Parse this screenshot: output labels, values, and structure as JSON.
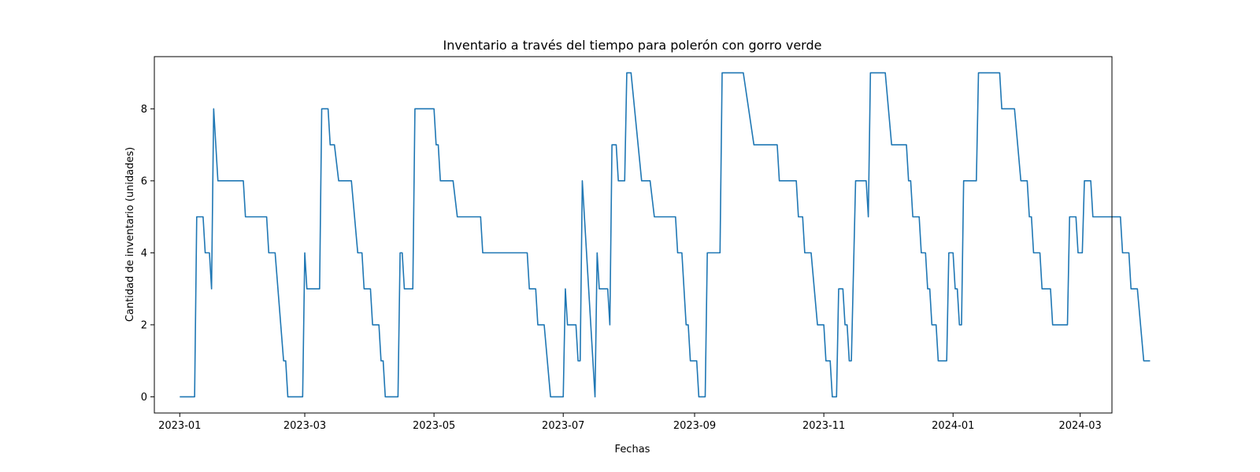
{
  "chart_data": {
    "type": "line",
    "title": "Inventario a través del tiempo para polerón con gorro verde",
    "xlabel": "Fechas",
    "ylabel": "Cantidad de inventario (unidades)",
    "xlim": [
      "2022-12-20",
      "2024-03-16"
    ],
    "ylim": [
      -0.45,
      9.45
    ],
    "grid": false,
    "x_ticks": [
      {
        "date": "2023-01-01",
        "label": "2023-01"
      },
      {
        "date": "2023-03-01",
        "label": "2023-03"
      },
      {
        "date": "2023-05-01",
        "label": "2023-05"
      },
      {
        "date": "2023-07-01",
        "label": "2023-07"
      },
      {
        "date": "2023-09-01",
        "label": "2023-09"
      },
      {
        "date": "2023-11-01",
        "label": "2023-11"
      },
      {
        "date": "2024-01-01",
        "label": "2024-01"
      },
      {
        "date": "2024-03-01",
        "label": "2024-03"
      }
    ],
    "y_ticks": [
      0,
      2,
      4,
      6,
      8
    ],
    "series": [
      {
        "color": "#1f77b4",
        "points": [
          [
            "2023-01-01",
            0
          ],
          [
            "2023-01-08",
            0
          ],
          [
            "2023-01-09",
            5
          ],
          [
            "2023-01-12",
            5
          ],
          [
            "2023-01-13",
            4
          ],
          [
            "2023-01-15",
            4
          ],
          [
            "2023-01-16",
            3
          ],
          [
            "2023-01-17",
            8
          ],
          [
            "2023-01-19",
            6
          ],
          [
            "2023-01-31",
            6
          ],
          [
            "2023-02-01",
            5
          ],
          [
            "2023-02-11",
            5
          ],
          [
            "2023-02-12",
            4
          ],
          [
            "2023-02-15",
            4
          ],
          [
            "2023-02-19",
            1
          ],
          [
            "2023-02-20",
            1
          ],
          [
            "2023-02-21",
            0
          ],
          [
            "2023-02-28",
            0
          ],
          [
            "2023-03-01",
            4
          ],
          [
            "2023-03-02",
            3
          ],
          [
            "2023-03-08",
            3
          ],
          [
            "2023-03-09",
            8
          ],
          [
            "2023-03-12",
            8
          ],
          [
            "2023-03-13",
            7
          ],
          [
            "2023-03-15",
            7
          ],
          [
            "2023-03-17",
            6
          ],
          [
            "2023-03-23",
            6
          ],
          [
            "2023-03-26",
            4
          ],
          [
            "2023-03-28",
            4
          ],
          [
            "2023-03-29",
            3
          ],
          [
            "2023-04-01",
            3
          ],
          [
            "2023-04-02",
            2
          ],
          [
            "2023-04-05",
            2
          ],
          [
            "2023-04-06",
            1
          ],
          [
            "2023-04-07",
            1
          ],
          [
            "2023-04-08",
            0
          ],
          [
            "2023-04-14",
            0
          ],
          [
            "2023-04-15",
            4
          ],
          [
            "2023-04-16",
            4
          ],
          [
            "2023-04-17",
            3
          ],
          [
            "2023-04-21",
            3
          ],
          [
            "2023-04-22",
            8
          ],
          [
            "2023-05-01",
            8
          ],
          [
            "2023-05-02",
            7
          ],
          [
            "2023-05-03",
            7
          ],
          [
            "2023-05-04",
            6
          ],
          [
            "2023-05-10",
            6
          ],
          [
            "2023-05-12",
            5
          ],
          [
            "2023-05-23",
            5
          ],
          [
            "2023-05-24",
            4
          ],
          [
            "2023-06-14",
            4
          ],
          [
            "2023-06-15",
            3
          ],
          [
            "2023-06-18",
            3
          ],
          [
            "2023-06-19",
            2
          ],
          [
            "2023-06-22",
            2
          ],
          [
            "2023-06-25",
            0
          ],
          [
            "2023-07-01",
            0
          ],
          [
            "2023-07-02",
            3
          ],
          [
            "2023-07-03",
            2
          ],
          [
            "2023-07-07",
            2
          ],
          [
            "2023-07-08",
            1
          ],
          [
            "2023-07-09",
            1
          ],
          [
            "2023-07-10",
            6
          ],
          [
            "2023-07-16",
            0
          ],
          [
            "2023-07-17",
            4
          ],
          [
            "2023-07-18",
            3
          ],
          [
            "2023-07-22",
            3
          ],
          [
            "2023-07-23",
            2
          ],
          [
            "2023-07-24",
            7
          ],
          [
            "2023-07-26",
            7
          ],
          [
            "2023-07-27",
            6
          ],
          [
            "2023-07-30",
            6
          ],
          [
            "2023-07-31",
            9
          ],
          [
            "2023-08-02",
            9
          ],
          [
            "2023-08-07",
            6
          ],
          [
            "2023-08-11",
            6
          ],
          [
            "2023-08-13",
            5
          ],
          [
            "2023-08-23",
            5
          ],
          [
            "2023-08-24",
            4
          ],
          [
            "2023-08-26",
            4
          ],
          [
            "2023-08-28",
            2
          ],
          [
            "2023-08-29",
            2
          ],
          [
            "2023-08-30",
            1
          ],
          [
            "2023-09-02",
            1
          ],
          [
            "2023-09-03",
            0
          ],
          [
            "2023-09-06",
            0
          ],
          [
            "2023-09-07",
            4
          ],
          [
            "2023-09-13",
            4
          ],
          [
            "2023-09-14",
            9
          ],
          [
            "2023-09-24",
            9
          ],
          [
            "2023-09-29",
            7
          ],
          [
            "2023-10-10",
            7
          ],
          [
            "2023-10-11",
            6
          ],
          [
            "2023-10-19",
            6
          ],
          [
            "2023-10-20",
            5
          ],
          [
            "2023-10-22",
            5
          ],
          [
            "2023-10-23",
            4
          ],
          [
            "2023-10-26",
            4
          ],
          [
            "2023-10-29",
            2
          ],
          [
            "2023-11-01",
            2
          ],
          [
            "2023-11-02",
            1
          ],
          [
            "2023-11-04",
            1
          ],
          [
            "2023-11-05",
            0
          ],
          [
            "2023-11-07",
            0
          ],
          [
            "2023-11-08",
            3
          ],
          [
            "2023-11-10",
            3
          ],
          [
            "2023-11-11",
            2
          ],
          [
            "2023-11-12",
            2
          ],
          [
            "2023-11-13",
            1
          ],
          [
            "2023-11-14",
            1
          ],
          [
            "2023-11-16",
            6
          ],
          [
            "2023-11-21",
            6
          ],
          [
            "2023-11-22",
            5
          ],
          [
            "2023-11-23",
            9
          ],
          [
            "2023-11-30",
            9
          ],
          [
            "2023-12-03",
            7
          ],
          [
            "2023-12-10",
            7
          ],
          [
            "2023-12-11",
            6
          ],
          [
            "2023-12-12",
            6
          ],
          [
            "2023-12-13",
            5
          ],
          [
            "2023-12-16",
            5
          ],
          [
            "2023-12-17",
            4
          ],
          [
            "2023-12-19",
            4
          ],
          [
            "2023-12-20",
            3
          ],
          [
            "2023-12-21",
            3
          ],
          [
            "2023-12-22",
            2
          ],
          [
            "2023-12-24",
            2
          ],
          [
            "2023-12-25",
            1
          ],
          [
            "2023-12-29",
            1
          ],
          [
            "2023-12-30",
            4
          ],
          [
            "2024-01-01",
            4
          ],
          [
            "2024-01-02",
            3
          ],
          [
            "2024-01-03",
            3
          ],
          [
            "2024-01-04",
            2
          ],
          [
            "2024-01-05",
            2
          ],
          [
            "2024-01-06",
            6
          ],
          [
            "2024-01-12",
            6
          ],
          [
            "2024-01-13",
            9
          ],
          [
            "2024-01-23",
            9
          ],
          [
            "2024-01-24",
            8
          ],
          [
            "2024-01-30",
            8
          ],
          [
            "2024-02-02",
            6
          ],
          [
            "2024-02-05",
            6
          ],
          [
            "2024-02-06",
            5
          ],
          [
            "2024-02-07",
            5
          ],
          [
            "2024-02-08",
            4
          ],
          [
            "2024-02-11",
            4
          ],
          [
            "2024-02-12",
            3
          ],
          [
            "2024-02-16",
            3
          ],
          [
            "2024-02-17",
            2
          ],
          [
            "2024-02-24",
            2
          ],
          [
            "2024-02-25",
            5
          ],
          [
            "2024-02-28",
            5
          ],
          [
            "2024-02-29",
            4
          ],
          [
            "2024-03-02",
            4
          ],
          [
            "2024-03-03",
            6
          ],
          [
            "2024-03-06",
            6
          ],
          [
            "2024-03-07",
            5
          ],
          [
            "2024-03-20",
            5
          ],
          [
            "2024-03-21",
            4
          ],
          [
            "2024-03-24",
            4
          ],
          [
            "2024-03-25",
            3
          ],
          [
            "2024-03-28",
            3
          ],
          [
            "2024-03-31",
            1
          ],
          [
            "2024-04-03",
            1
          ]
        ]
      }
    ]
  }
}
